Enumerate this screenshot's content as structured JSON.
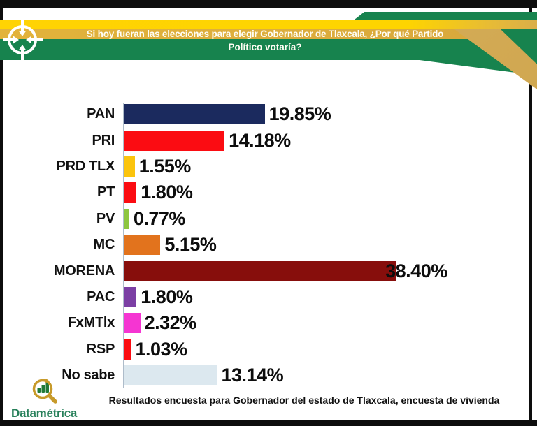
{
  "header": {
    "title_line1": "Si hoy fueran las elecciones para elegir Gobernador de Tlaxcala, ¿Por qué Partido",
    "title_line2": "Político votaría?",
    "icon": "crosshair-target-icon",
    "colors": {
      "green": "#17834E",
      "yellow": "#FFD303",
      "gold": "#D9A93C",
      "ribbon": "#D6AF5E"
    }
  },
  "chart_data": {
    "type": "bar",
    "orientation": "horizontal",
    "categories": [
      "PAN",
      "PRI",
      "PRD TLX",
      "PT",
      "PV",
      "MC",
      "MORENA",
      "PAC",
      "FxMTlx",
      "RSP",
      "No sabe"
    ],
    "values": [
      19.85,
      14.18,
      1.55,
      1.8,
      0.77,
      5.15,
      38.4,
      1.8,
      2.32,
      1.03,
      13.14
    ],
    "labels": [
      "19.85%",
      "14.18%",
      "1.55%",
      "1.80%",
      "0.77%",
      "5.15%",
      "38.40%",
      "1.80%",
      "2.32%",
      "1.03%",
      "13.14%"
    ],
    "colors": [
      "#1B2A5E",
      "#FB0C12",
      "#FBC40D",
      "#FB0C12",
      "#8DC63F",
      "#E2731D",
      "#870E0C",
      "#7B3FA4",
      "#F535D2",
      "#FB0C12",
      "#DCE8EF"
    ],
    "title": "",
    "xlabel": "",
    "ylabel": "",
    "xlim": [
      0,
      40
    ],
    "grid": false,
    "legend": false,
    "value_labels_position": "end-of-bar"
  },
  "footer": {
    "logo_text": "Datamétrica",
    "logo_icon": "magnifier-bar-chart-icon",
    "caption": "Resultados encuesta para Gobernador del estado de Tlaxcala, encuesta de vivienda"
  }
}
